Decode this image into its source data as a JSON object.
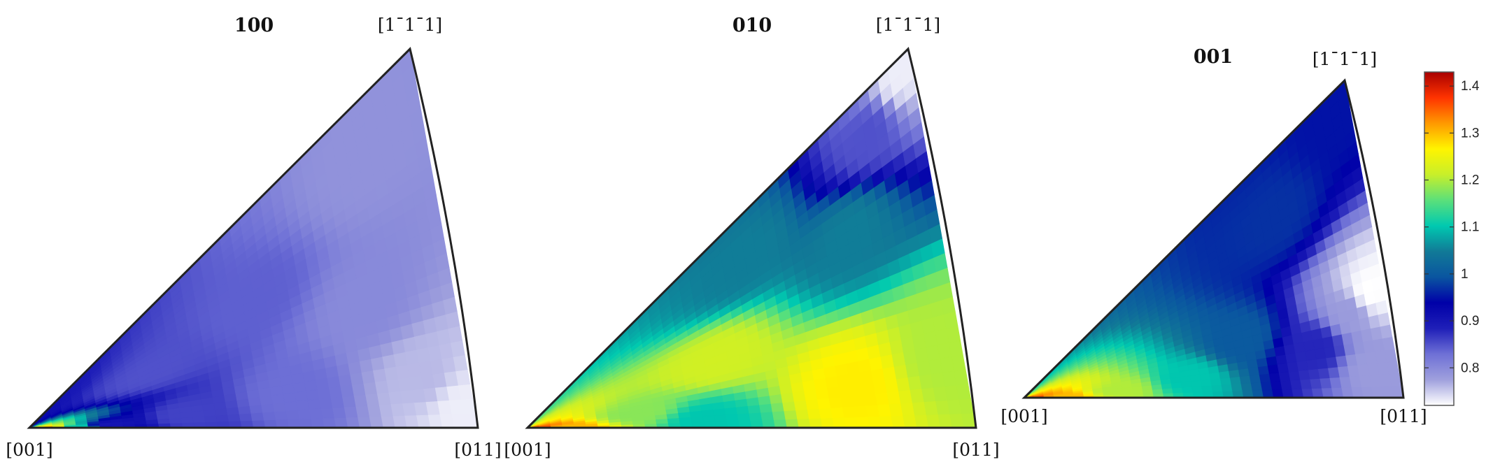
{
  "chart_data": [
    {
      "type": "heatmap",
      "title": "100",
      "corner_labels": {
        "origin": "[001]",
        "right": "[011]",
        "apex": "[1¯1¯1]"
      },
      "colorbar_shared": true,
      "samples": [
        {
          "u": 0.02,
          "v": 0.01,
          "value": 1.43
        },
        {
          "u": 0.05,
          "v": 0.02,
          "value": 1.3
        },
        {
          "u": 0.1,
          "v": 0.03,
          "value": 1.1
        },
        {
          "u": 0.18,
          "v": 0.05,
          "value": 0.9
        },
        {
          "u": 0.35,
          "v": 0.1,
          "value": 0.86
        },
        {
          "u": 0.6,
          "v": 0.15,
          "value": 0.83
        },
        {
          "u": 0.3,
          "v": 0.5,
          "value": 0.85
        },
        {
          "u": 0.55,
          "v": 0.6,
          "value": 0.84
        },
        {
          "u": 0.8,
          "v": 0.4,
          "value": 0.8
        },
        {
          "u": 0.9,
          "v": 0.15,
          "value": 0.76
        },
        {
          "u": 0.97,
          "v": 0.05,
          "value": 0.73
        },
        {
          "u": 0.85,
          "v": 0.85,
          "value": 0.79
        }
      ]
    },
    {
      "type": "heatmap",
      "title": "010",
      "corner_labels": {
        "origin": "[001]",
        "right": "[011]",
        "apex": "[1¯1¯1]"
      },
      "colorbar_shared": true,
      "samples": [
        {
          "u": 0.02,
          "v": 0.01,
          "value": 1.43
        },
        {
          "u": 0.08,
          "v": 0.03,
          "value": 1.3
        },
        {
          "u": 0.25,
          "v": 0.15,
          "value": 1.18
        },
        {
          "u": 0.4,
          "v": 0.05,
          "value": 1.1
        },
        {
          "u": 0.45,
          "v": 0.4,
          "value": 1.22
        },
        {
          "u": 0.75,
          "v": 0.15,
          "value": 1.27
        },
        {
          "u": 0.95,
          "v": 0.2,
          "value": 1.2
        },
        {
          "u": 0.55,
          "v": 0.8,
          "value": 1.05
        },
        {
          "u": 0.8,
          "v": 0.65,
          "value": 1.05
        },
        {
          "u": 0.88,
          "v": 0.88,
          "value": 0.85
        },
        {
          "u": 0.97,
          "v": 0.97,
          "value": 0.73
        }
      ]
    },
    {
      "type": "heatmap",
      "title": "001",
      "corner_labels": {
        "origin": "[001]",
        "right": "[011]",
        "apex": "[1¯1¯1]"
      },
      "colorbar_shared": true,
      "samples": [
        {
          "u": 0.02,
          "v": 0.01,
          "value": 1.43
        },
        {
          "u": 0.1,
          "v": 0.05,
          "value": 1.3
        },
        {
          "u": 0.25,
          "v": 0.1,
          "value": 1.2
        },
        {
          "u": 0.45,
          "v": 0.15,
          "value": 1.1
        },
        {
          "u": 0.6,
          "v": 0.3,
          "value": 1.0
        },
        {
          "u": 0.8,
          "v": 0.2,
          "value": 0.88
        },
        {
          "u": 0.9,
          "v": 0.3,
          "value": 0.78
        },
        {
          "u": 0.96,
          "v": 0.35,
          "value": 0.72
        },
        {
          "u": 0.93,
          "v": 0.1,
          "value": 0.78
        },
        {
          "u": 0.75,
          "v": 0.75,
          "value": 0.97
        },
        {
          "u": 0.95,
          "v": 0.95,
          "value": 0.95
        }
      ]
    }
  ],
  "colorbar": {
    "min": 0.72,
    "max": 1.43,
    "ticks": [
      "0.8",
      "0.9",
      "1",
      "1.1",
      "1.2",
      "1.3",
      "1.4"
    ],
    "tick_values": [
      0.8,
      0.9,
      1.0,
      1.1,
      1.2,
      1.3,
      1.4
    ],
    "colormap": [
      "#ffffff",
      "#9fa0dd",
      "#6e70d6",
      "#1f1fb8",
      "#0000a8",
      "#0a55a0",
      "#117a97",
      "#00c9b0",
      "#5be07a",
      "#c8ef2a",
      "#fff400",
      "#ff9900",
      "#ff3300",
      "#a80000"
    ]
  }
}
